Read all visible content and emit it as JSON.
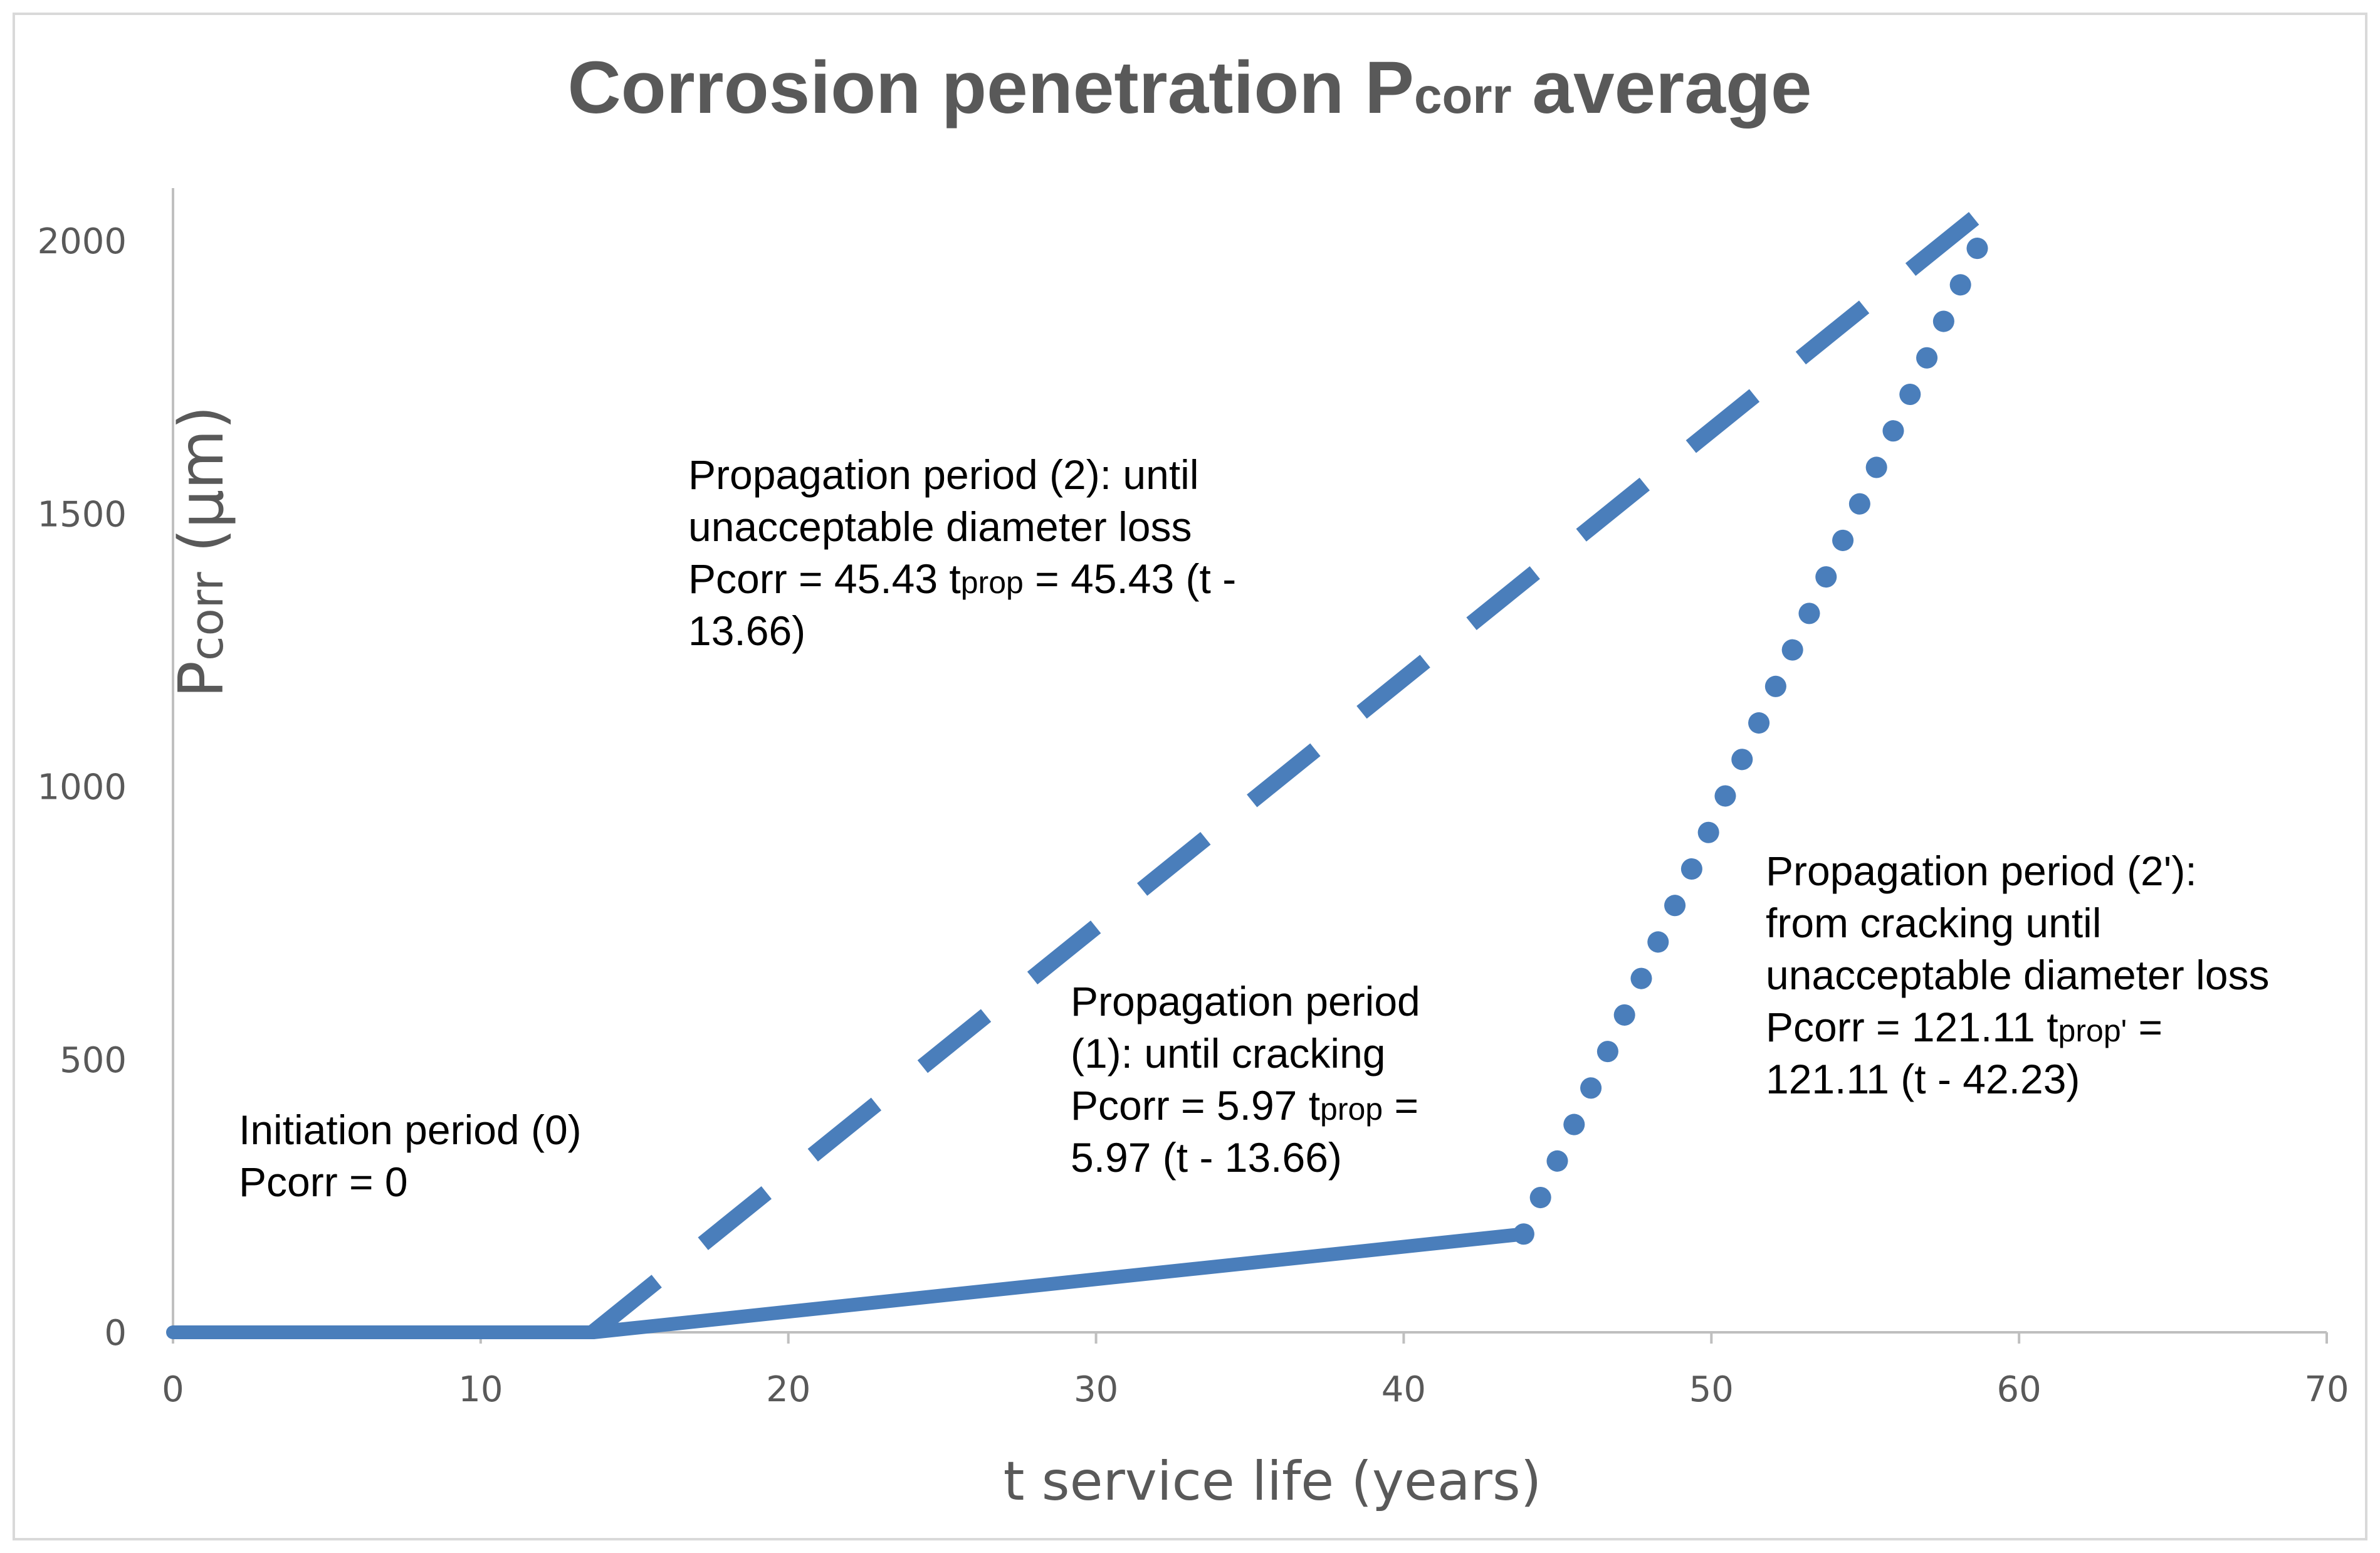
{
  "chart_data": {
    "type": "line",
    "title": "Corrosion penetration Pcorr average",
    "title_parts": {
      "main_a": "Corrosion penetration ",
      "sub": "corr",
      "main_b": " average",
      "main_p": "P"
    },
    "xlabel": "t service life (years)",
    "ylabel": "Pcorr (μm)",
    "ylabel_parts": {
      "p": "P",
      "sub": "corr",
      "unit": " (μm)"
    },
    "xlim": [
      0,
      70
    ],
    "ylim": [
      0,
      2000
    ],
    "xticks": [
      "0",
      "10",
      "20",
      "30",
      "40",
      "50",
      "60",
      "70"
    ],
    "xtick_values": [
      0,
      10,
      20,
      30,
      40,
      50,
      60,
      70
    ],
    "yticks": [
      "0",
      "500",
      "1000",
      "1500",
      "2000"
    ],
    "ytick_values": [
      0,
      500,
      1000,
      1500,
      2000
    ],
    "grid": false,
    "color": "#4a7ebb",
    "series": [
      {
        "style": "solid",
        "points": [
          [
            0,
            0
          ],
          [
            13.66,
            0
          ]
        ]
      },
      {
        "style": "solid",
        "points": [
          [
            13.66,
            0
          ],
          [
            43.9,
            180
          ]
        ]
      },
      {
        "style": "dashed",
        "points": [
          [
            13.66,
            0
          ],
          [
            59.5,
            2085
          ]
        ]
      },
      {
        "style": "dotted",
        "points": [
          [
            43.9,
            180
          ],
          [
            59.0,
            2030
          ]
        ]
      }
    ],
    "annotations": [
      {
        "lines": [
          [
            {
              "t": "Initiation period (0)"
            }
          ],
          [
            {
              "t": "Pcorr = 0"
            }
          ]
        ]
      },
      {
        "lines": [
          [
            {
              "t": "Propagation period (2): until"
            }
          ],
          [
            {
              "t": "unacceptable diameter loss"
            }
          ],
          [
            {
              "t": "Pcorr = 45.43 t"
            },
            {
              "t": "prop",
              "sub": true
            },
            {
              "t": " = 45.43 (t -"
            }
          ],
          [
            {
              "t": "13.66)"
            }
          ]
        ]
      },
      {
        "lines": [
          [
            {
              "t": "Propagation period"
            }
          ],
          [
            {
              "t": "(1): until cracking"
            }
          ],
          [
            {
              "t": "Pcorr = 5.97 t"
            },
            {
              "t": "prop",
              "sub": true
            },
            {
              "t": " ="
            }
          ],
          [
            {
              "t": "5.97 (t - 13.66)"
            }
          ]
        ]
      },
      {
        "lines": [
          [
            {
              "t": "Propagation period (2'):"
            }
          ],
          [
            {
              "t": "from cracking until"
            }
          ],
          [
            {
              "t": "unacceptable diameter loss"
            }
          ],
          [
            {
              "t": "Pcorr = 121.11 t"
            },
            {
              "t": "prop'",
              "sub": true
            },
            {
              "t": " ="
            }
          ],
          [
            {
              "t": "121.11 (t - 42.23)"
            }
          ]
        ]
      }
    ]
  }
}
